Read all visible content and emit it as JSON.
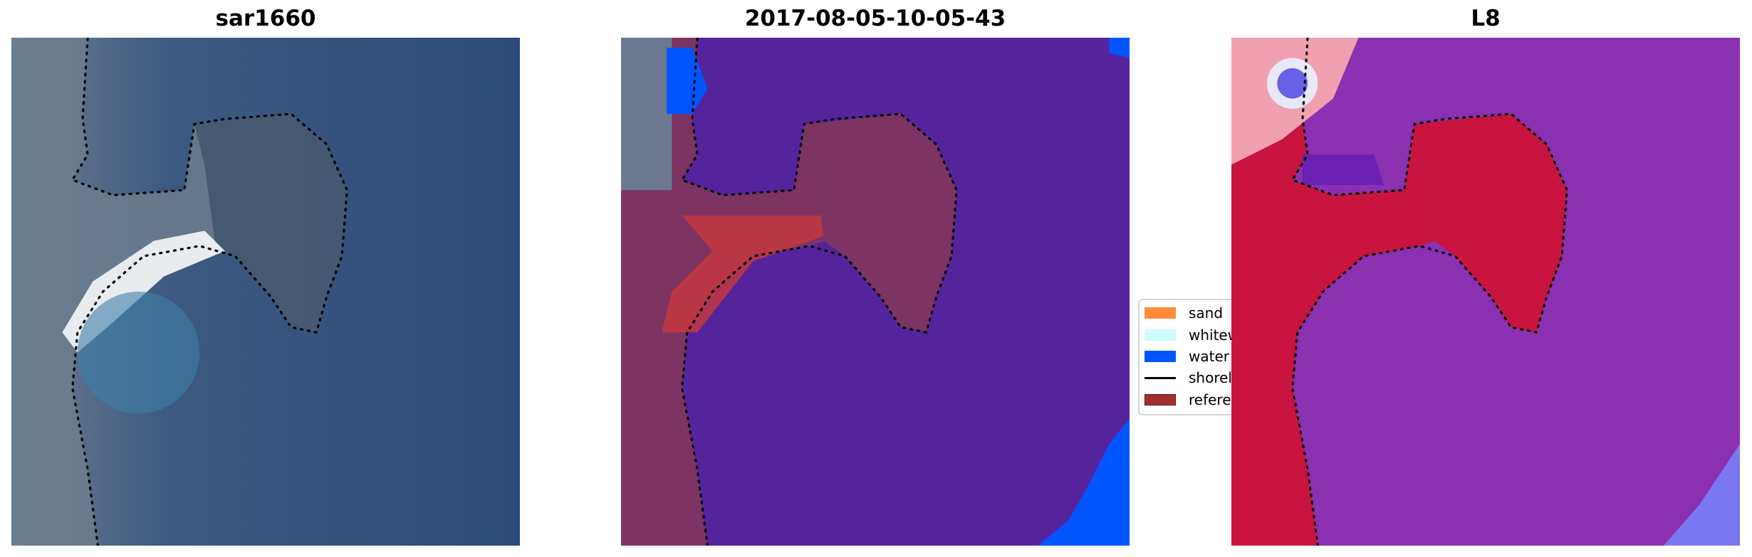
{
  "chart_data": [
    {
      "type": "image",
      "title": "sar1660",
      "axes": "off"
    },
    {
      "type": "image",
      "title": "2017-08-05-10-05-43",
      "axes": "off",
      "legend": {
        "placement": "right",
        "entries": [
          {
            "label": "sand",
            "color": "#ff8c3a"
          },
          {
            "label": "whitewater",
            "color": "#ccfcfc"
          },
          {
            "label": "water",
            "color": "#0055ff"
          },
          {
            "label": "shoreline",
            "color": "#000000"
          },
          {
            "label": "reference",
            "color": "#a03030"
          }
        ]
      }
    },
    {
      "type": "image",
      "title": "L8",
      "axes": "off"
    }
  ]
}
